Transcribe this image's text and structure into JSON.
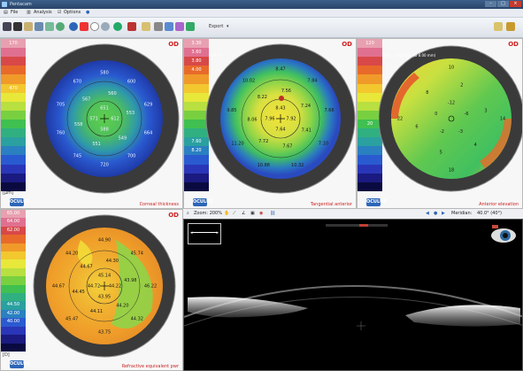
{
  "window": {
    "title": "Pentacam"
  },
  "menu": {
    "items": [
      "File",
      "Analysis",
      "Options"
    ]
  },
  "toolbar": {
    "export_label": "Export"
  },
  "panels": {
    "thickness": {
      "od": "OD",
      "label": "Corneal thickness",
      "unit": "[µm]",
      "scale": [
        "170",
        "",
        "",
        "",
        "",
        "470",
        "",
        "",
        "",
        "",
        "",
        "",
        "",
        "",
        "",
        "",
        ""
      ],
      "values": [
        {
          "t": "651"
        },
        {
          "t": "612"
        },
        {
          "t": "588"
        },
        {
          "t": "571"
        },
        {
          "t": "560"
        },
        {
          "t": "553"
        },
        {
          "t": "549"
        },
        {
          "t": "551"
        },
        {
          "t": "558"
        },
        {
          "t": "567"
        },
        {
          "t": "580"
        },
        {
          "t": "600"
        },
        {
          "t": "629"
        },
        {
          "t": "664"
        },
        {
          "t": "700"
        },
        {
          "t": "720"
        },
        {
          "t": "745"
        },
        {
          "t": "760"
        },
        {
          "t": "705"
        },
        {
          "t": "670"
        }
      ]
    },
    "tangential": {
      "od": "OD",
      "label": "Tangential anterior",
      "info": "K Rr 0°",
      "scale": [
        "3.30",
        "3.60",
        "3.80",
        "4.00",
        "",
        "",
        "",
        "",
        "",
        "",
        "",
        "7.60",
        "8.20",
        "",
        "",
        "",
        ""
      ],
      "values": [
        {
          "t": "8.43"
        },
        {
          "t": "7.92"
        },
        {
          "t": "7.64"
        },
        {
          "t": "7.96"
        },
        {
          "t": "7.56"
        },
        {
          "t": "7.24"
        },
        {
          "t": "7.41"
        },
        {
          "t": "7.67"
        },
        {
          "t": "7.72"
        },
        {
          "t": "8.06"
        },
        {
          "t": "8.22"
        },
        {
          "t": "8.47"
        },
        {
          "t": "7.84"
        },
        {
          "t": "7.66"
        },
        {
          "t": "7.10"
        },
        {
          "t": "10.32"
        },
        {
          "t": "10.88"
        },
        {
          "t": "11.20"
        },
        {
          "t": "9.85"
        },
        {
          "t": "10.02"
        }
      ]
    },
    "elevation": {
      "od": "OD",
      "label": "Anterior elevation",
      "info": "BFS = 7.69 mm (Ø 8.00 mm)",
      "scale": [
        "120",
        "",
        "",
        "",
        "",
        "",
        "",
        "",
        "",
        "20",
        "",
        "",
        "",
        "",
        "",
        "",
        ""
      ],
      "values": [
        {
          "t": "-12"
        },
        {
          "t": "-6"
        },
        {
          "t": "-3"
        },
        {
          "t": "-2"
        },
        {
          "t": "0"
        },
        {
          "t": "2"
        },
        {
          "t": "3"
        },
        {
          "t": "4"
        },
        {
          "t": "5"
        },
        {
          "t": "6"
        },
        {
          "t": "8"
        },
        {
          "t": "10"
        },
        {
          "t": "14"
        },
        {
          "t": "18"
        },
        {
          "t": "22"
        }
      ]
    },
    "refractive": {
      "od": "OD",
      "label": "Refractive equivalent pwr",
      "unit": "[D]",
      "scale": [
        "65.00",
        "64.00",
        "62.00",
        "",
        "",
        "",
        "",
        "",
        "",
        "",
        "",
        "44.50",
        "42.00",
        "40.00",
        "",
        "",
        ""
      ],
      "values": [
        {
          "t": "45.14"
        },
        {
          "t": "44.22"
        },
        {
          "t": "43.95"
        },
        {
          "t": "44.72"
        },
        {
          "t": "44.30"
        },
        {
          "t": "43.98"
        },
        {
          "t": "44.20"
        },
        {
          "t": "44.11"
        },
        {
          "t": "44.45"
        },
        {
          "t": "44.67"
        },
        {
          "t": "44.90"
        },
        {
          "t": "45.74"
        },
        {
          "t": "46.22"
        },
        {
          "t": "44.32"
        },
        {
          "t": "43.75"
        },
        {
          "t": "45.47"
        },
        {
          "t": "44.67"
        },
        {
          "t": "44.20"
        }
      ]
    }
  },
  "oct": {
    "zoom_label": "Zoom: 200%",
    "meridian_label": "Meridian:",
    "meridian_value": "40.0° (40°)"
  },
  "colors": {
    "scale": [
      "#e8a0b0",
      "#e07090",
      "#d84848",
      "#e86a2a",
      "#f09a2a",
      "#f2c82e",
      "#e8e83a",
      "#b8e040",
      "#78d040",
      "#40c050",
      "#30b080",
      "#2aa0a0",
      "#2a80c0",
      "#2a5ad0",
      "#2a36b8",
      "#1a1a80",
      "#0a0a40"
    ]
  }
}
